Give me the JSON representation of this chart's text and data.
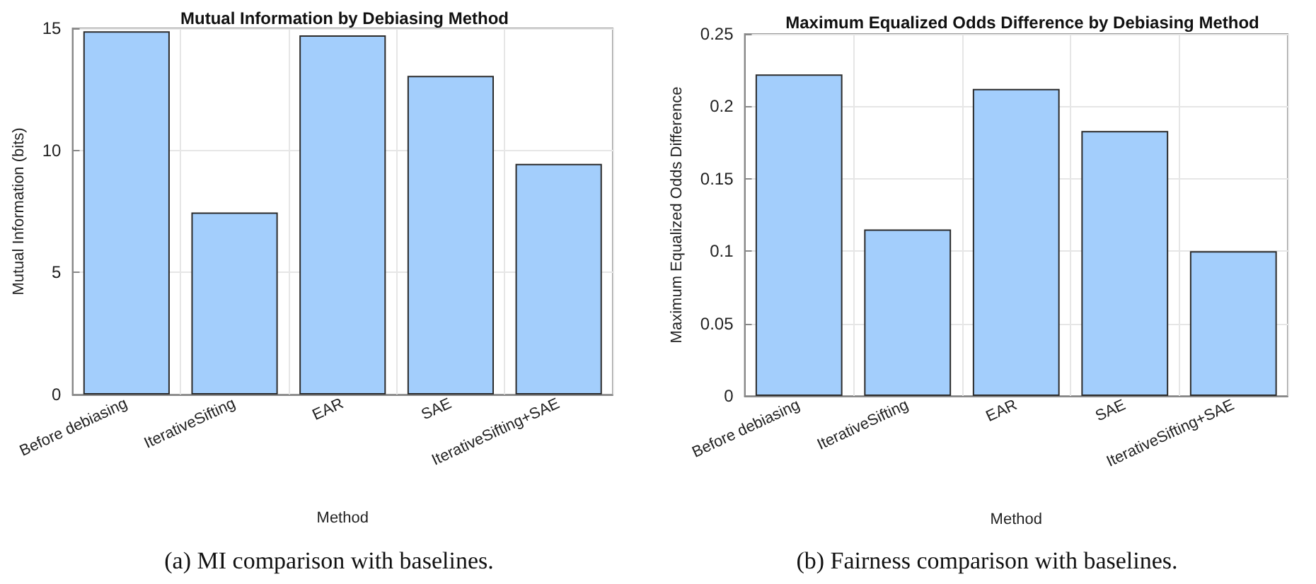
{
  "chart_data": [
    {
      "type": "bar",
      "title": "Mutual Information by Debiasing Method",
      "xlabel": "Method",
      "ylabel": "Mutual Information (bits)",
      "categories": [
        "Before debiasing",
        "IterativeSifting",
        "EAR",
        "SAE",
        "IterativeSifting+SAE"
      ],
      "values": [
        14.88,
        7.46,
        14.71,
        13.05,
        9.45
      ],
      "color": "#a3cefc",
      "ylim": [
        0,
        15
      ],
      "yticks": [
        0,
        5,
        10,
        15
      ],
      "grid": true,
      "annotations": [
        "(a) MI comparison with baselines."
      ]
    },
    {
      "type": "bar",
      "title": "Maximum Equalized Odds Difference by Debiasing Method",
      "xlabel": "Method",
      "ylabel": "Maximum Equalized Odds Difference",
      "categories": [
        "Before debiasing",
        "IterativeSifting",
        "EAR",
        "SAE",
        "IterativeSifting+SAE"
      ],
      "values": [
        0.222,
        0.115,
        0.212,
        0.183,
        0.1
      ],
      "color": "#a3cefc",
      "ylim": [
        0,
        0.25
      ],
      "yticks": [
        0,
        0.05,
        0.1,
        0.15,
        0.2,
        0.25
      ],
      "grid": true,
      "annotations": [
        "(b) Fairness comparison with baselines."
      ]
    }
  ]
}
